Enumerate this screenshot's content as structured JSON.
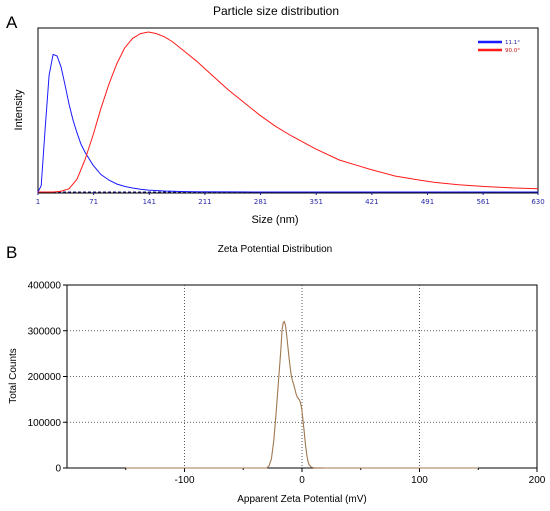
{
  "chart_data": [
    {
      "panel": "A",
      "type": "line",
      "title": "Particle size distribution",
      "xlabel": "Size (nm)",
      "ylabel": "Intensity",
      "xlim": [
        1,
        630
      ],
      "ylim": [
        0,
        1
      ],
      "x_ticks": [
        "1",
        "71",
        "141",
        "211",
        "281",
        "351",
        "421",
        "491",
        "561",
        "630"
      ],
      "grid": false,
      "legend": "top-right",
      "series": [
        {
          "name": "11.1°",
          "color": "#1a1aff",
          "x": [
            1,
            5,
            10,
            15,
            20,
            25,
            30,
            35,
            40,
            45,
            50,
            55,
            60,
            70,
            80,
            90,
            100,
            110,
            120,
            130,
            140,
            160,
            180,
            200,
            250,
            300,
            400,
            500,
            630
          ],
          "y": [
            0.0,
            0.04,
            0.4,
            0.73,
            0.86,
            0.85,
            0.78,
            0.67,
            0.55,
            0.45,
            0.37,
            0.3,
            0.25,
            0.17,
            0.11,
            0.075,
            0.05,
            0.035,
            0.025,
            0.017,
            0.012,
            0.006,
            0.003,
            0.0015,
            0.0005,
            0.0003,
            0.0002,
            0.0001,
            0.0
          ]
        },
        {
          "name": "90.0°",
          "color": "#ff1a1a",
          "x": [
            1,
            10,
            20,
            30,
            40,
            50,
            60,
            70,
            80,
            90,
            100,
            110,
            120,
            130,
            140,
            150,
            160,
            170,
            180,
            190,
            200,
            220,
            240,
            260,
            280,
            300,
            320,
            350,
            380,
            400,
            420,
            450,
            480,
            500,
            530,
            560,
            600,
            630
          ],
          "y": [
            0.0,
            0.0,
            0.0,
            0.005,
            0.02,
            0.08,
            0.2,
            0.35,
            0.52,
            0.67,
            0.8,
            0.9,
            0.96,
            0.99,
            1.0,
            0.99,
            0.97,
            0.94,
            0.9,
            0.86,
            0.82,
            0.73,
            0.64,
            0.56,
            0.48,
            0.41,
            0.35,
            0.27,
            0.2,
            0.17,
            0.14,
            0.1,
            0.075,
            0.06,
            0.045,
            0.035,
            0.025,
            0.02
          ]
        }
      ]
    },
    {
      "panel": "B",
      "type": "line",
      "title": "Zeta Potential Distribution",
      "xlabel": "Apparent Zeta Potential (mV)",
      "ylabel": "Total Counts",
      "xlim": [
        -200,
        200
      ],
      "ylim": [
        0,
        400000
      ],
      "x_ticks": [
        "-100",
        "0",
        "100",
        "200"
      ],
      "y_ticks": [
        "0",
        "100000",
        "200000",
        "300000",
        "400000"
      ],
      "grid": true,
      "series": [
        {
          "color": "#a07850",
          "x": [
            -150,
            -60,
            -30,
            -28,
            -26,
            -24,
            -22,
            -20,
            -18,
            -17,
            -16,
            -15,
            -14,
            -13,
            -12,
            -11,
            -10,
            -9,
            -8,
            -7,
            -6,
            -5,
            -4,
            -3,
            -2,
            -1,
            0,
            1,
            2,
            3,
            4,
            5,
            6,
            8,
            10,
            20,
            60,
            150
          ],
          "y": [
            0,
            0,
            0,
            5000,
            20000,
            60000,
            120000,
            190000,
            260000,
            300000,
            318000,
            320000,
            310000,
            290000,
            265000,
            240000,
            218000,
            200000,
            190000,
            182000,
            172000,
            162000,
            155000,
            152000,
            148000,
            140000,
            125000,
            100000,
            75000,
            50000,
            30000,
            15000,
            7000,
            2000,
            500,
            0,
            0,
            0
          ]
        }
      ]
    }
  ],
  "panels": {
    "a_letter": "A",
    "b_letter": "B"
  }
}
